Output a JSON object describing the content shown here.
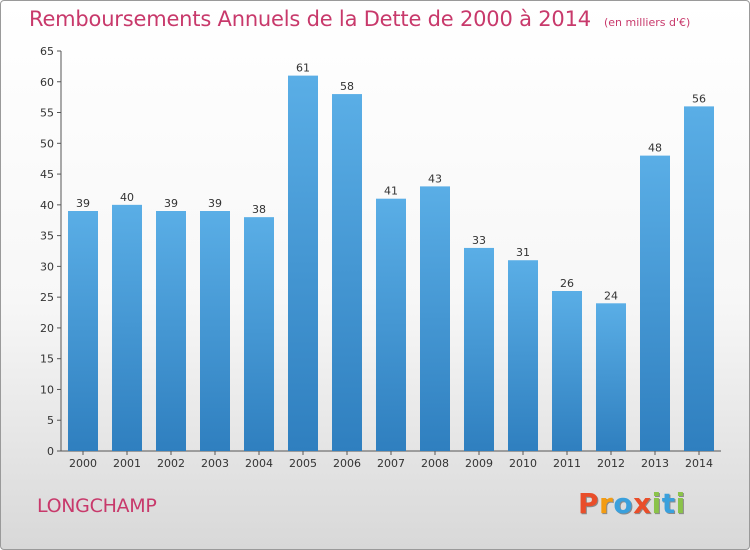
{
  "chart_data": {
    "type": "bar",
    "title": "Remboursements Annuels de la Dette de 2000 à 2014",
    "subtitle": "(en milliers d'€)",
    "categories": [
      "2000",
      "2001",
      "2002",
      "2003",
      "2004",
      "2005",
      "2006",
      "2007",
      "2008",
      "2009",
      "2010",
      "2011",
      "2012",
      "2013",
      "2014"
    ],
    "values": [
      39,
      40,
      39,
      39,
      38,
      61,
      58,
      41,
      43,
      33,
      31,
      26,
      24,
      48,
      56
    ],
    "ylim": [
      0,
      65
    ],
    "yticks": [
      0,
      5,
      10,
      15,
      20,
      25,
      30,
      35,
      40,
      45,
      50,
      55,
      60,
      65
    ],
    "grid": false,
    "colors": {
      "bar_top": "#5aaee6",
      "bar_bottom": "#2f7fbf",
      "title": "#c8396b"
    }
  },
  "footer": {
    "town": "LONGCHAMP",
    "logo": {
      "letters": [
        "P",
        "r",
        "o",
        "x",
        "i",
        "t",
        "i"
      ],
      "colors": [
        "#e94e2a",
        "#f39c12",
        "#3aa0dc",
        "#e94e2a",
        "#8bc34a",
        "#3aa0dc",
        "#8bc34a"
      ]
    }
  }
}
